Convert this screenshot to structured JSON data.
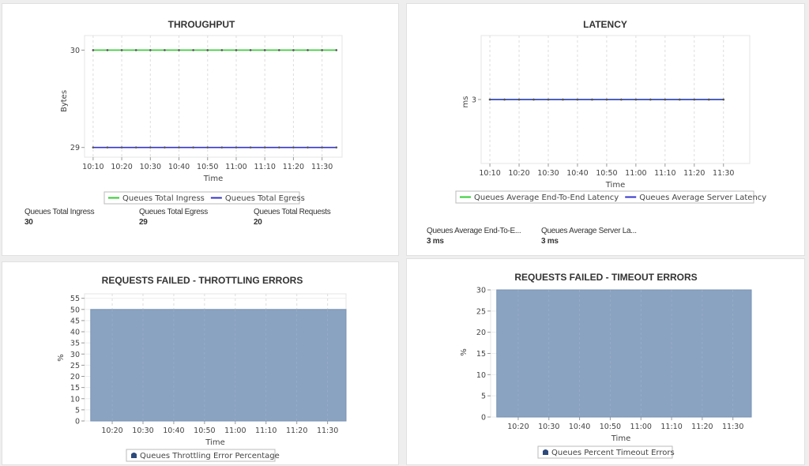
{
  "chart_data": [
    {
      "type": "line",
      "title": "THROUGHPUT",
      "xlabel": "Time",
      "ylabel": "Bytes",
      "x": [
        "10:10",
        "10:15",
        "10:20",
        "10:25",
        "10:30",
        "10:35",
        "10:40",
        "10:45",
        "10:50",
        "10:55",
        "11:00",
        "11:05",
        "11:10",
        "11:15",
        "11:20",
        "11:25",
        "11:30",
        "11:35"
      ],
      "xticks": [
        "10:10",
        "10:20",
        "10:30",
        "10:40",
        "10:50",
        "11:00",
        "11:10",
        "11:20",
        "11:30"
      ],
      "yticks": [
        29,
        30
      ],
      "ylim": [
        28.9,
        30.15
      ],
      "grid": true,
      "legend_position": "bottom",
      "series": [
        {
          "name": "Queues Total Ingress",
          "color": "#33cc33",
          "values": [
            30,
            30,
            30,
            30,
            30,
            30,
            30,
            30,
            30,
            30,
            30,
            30,
            30,
            30,
            30,
            30,
            30,
            30
          ]
        },
        {
          "name": "Queues Total Egress",
          "color": "#3333cc",
          "values": [
            29,
            29,
            29,
            29,
            29,
            29,
            29,
            29,
            29,
            29,
            29,
            29,
            29,
            29,
            29,
            29,
            29,
            29
          ]
        }
      ]
    },
    {
      "type": "line",
      "title": "LATENCY",
      "xlabel": "Time",
      "ylabel": "ms",
      "x": [
        "10:10",
        "10:15",
        "10:20",
        "10:25",
        "10:30",
        "10:35",
        "10:40",
        "10:45",
        "10:50",
        "10:55",
        "11:00",
        "11:05",
        "11:10",
        "11:15",
        "11:20",
        "11:25",
        "11:30"
      ],
      "xticks": [
        "10:10",
        "10:20",
        "10:30",
        "10:40",
        "10:50",
        "11:00",
        "11:10",
        "11:20",
        "11:30"
      ],
      "yticks": [
        3
      ],
      "ylim": [
        2,
        4
      ],
      "grid": true,
      "legend_position": "bottom",
      "series": [
        {
          "name": "Queues Average End-To-End Latency",
          "color": "#33cc33",
          "values": [
            3,
            3,
            3,
            3,
            3,
            3,
            3,
            3,
            3,
            3,
            3,
            3,
            3,
            3,
            3,
            3,
            3
          ]
        },
        {
          "name": "Queues Average Server Latency",
          "color": "#3333cc",
          "values": [
            3,
            3,
            3,
            3,
            3,
            3,
            3,
            3,
            3,
            3,
            3,
            3,
            3,
            3,
            3,
            3,
            3
          ]
        }
      ]
    },
    {
      "type": "area",
      "title": "REQUESTS FAILED - THROTTLING ERRORS",
      "xlabel": "Time",
      "ylabel": "%",
      "x": [
        "10:13",
        "11:36"
      ],
      "xticks": [
        "10:20",
        "10:30",
        "10:40",
        "10:50",
        "11:00",
        "11:10",
        "11:20",
        "11:30"
      ],
      "yticks": [
        0,
        5,
        10,
        15,
        20,
        25,
        30,
        35,
        40,
        45,
        50,
        55
      ],
      "ylim": [
        0,
        57
      ],
      "grid": true,
      "legend_position": "bottom",
      "series": [
        {
          "name": "Queues Throttling Error Percentage",
          "color": "#8aa3c1",
          "values": [
            50,
            50
          ]
        }
      ]
    },
    {
      "type": "area",
      "title": "REQUESTS FAILED - TIMEOUT ERRORS",
      "xlabel": "Time",
      "ylabel": "%",
      "x": [
        "10:13",
        "11:36"
      ],
      "xticks": [
        "10:20",
        "10:30",
        "10:40",
        "10:50",
        "11:00",
        "11:10",
        "11:20",
        "11:30"
      ],
      "yticks": [
        0,
        5,
        10,
        15,
        20,
        25,
        30
      ],
      "ylim": [
        0,
        30
      ],
      "grid": true,
      "legend_position": "bottom",
      "series": [
        {
          "name": "Queues Percent Timeout Errors",
          "color": "#8aa3c1",
          "values": [
            30,
            30
          ]
        }
      ]
    }
  ],
  "throughput_stats": [
    {
      "label": "Queues Total Ingress",
      "value": "30"
    },
    {
      "label": "Queues Total Egress",
      "value": "29"
    },
    {
      "label": "Queues Total Requests",
      "value": "20"
    }
  ],
  "latency_stats": [
    {
      "label": "Queues Average End-To-E...",
      "value": "3 ms"
    },
    {
      "label": "Queues Average Server La...",
      "value": "3 ms"
    }
  ]
}
